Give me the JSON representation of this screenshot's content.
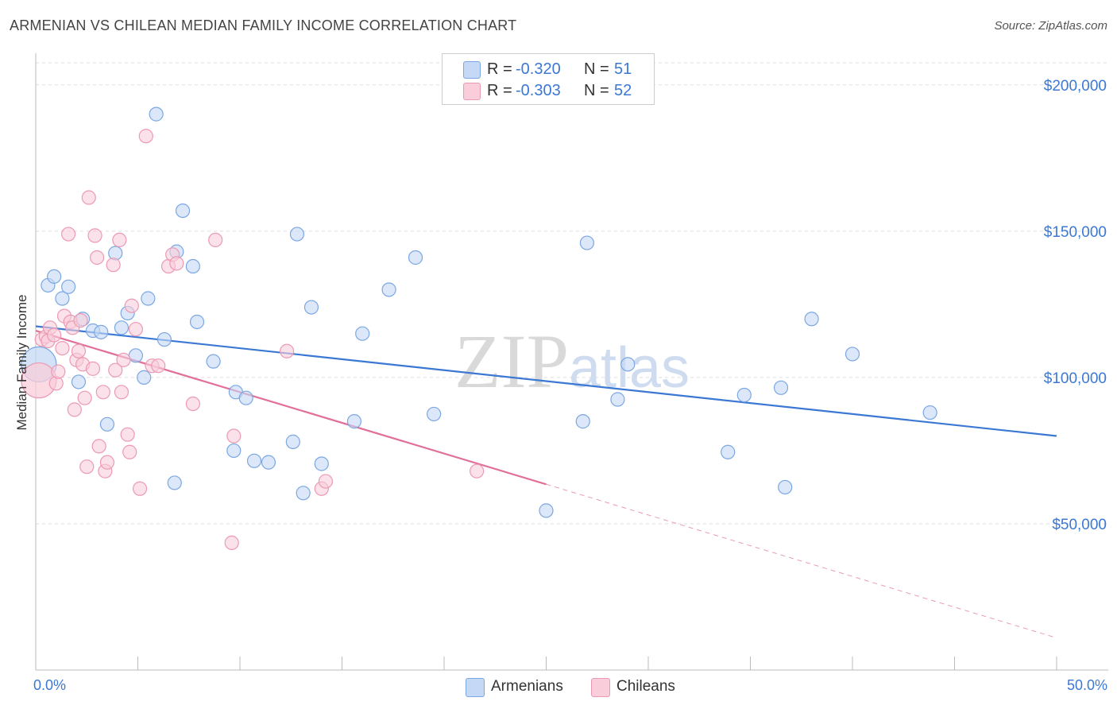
{
  "title": "ARMENIAN VS CHILEAN MEDIAN FAMILY INCOME CORRELATION CHART",
  "source": "Source: ZipAtlas.com",
  "watermark": "ZIPatlas",
  "colors": {
    "armenian_fill": "#c5d8f5",
    "armenian_stroke": "#7ba7e2",
    "armenian_line": "#3b78d4",
    "chilean_fill": "#f9cdda",
    "chilean_stroke": "#ec9ab4",
    "chilean_line": "#e0709a",
    "axis_text": "#3b78d4",
    "grid": "#dddddd"
  },
  "legend": {
    "rows": [
      {
        "r_label": "R =",
        "r_value": "-0.320",
        "n_label": "N =",
        "n_value": "51"
      },
      {
        "r_label": "R =",
        "r_value": "-0.303",
        "n_label": "N =",
        "n_value": "52"
      }
    ]
  },
  "chart_data": {
    "type": "scatter",
    "title": "ARMENIAN VS CHILEAN MEDIAN FAMILY INCOME CORRELATION CHART",
    "xlabel": "",
    "ylabel": "Median Family Income",
    "xlim": [
      0,
      50
    ],
    "ylim": [
      0,
      210000
    ],
    "x_tick_labels": [
      "0.0%",
      "50.0%"
    ],
    "y_ticks": [
      50000,
      100000,
      150000,
      200000
    ],
    "y_tick_labels": [
      "$50,000",
      "$100,000",
      "$150,000",
      "$200,000"
    ],
    "grid": true,
    "series": [
      {
        "name": "Armenians",
        "r": -0.32,
        "n": 51,
        "trend": {
          "x0": 0,
          "y0": 117500,
          "x1": 50,
          "y1": 80000
        },
        "points": [
          [
            0.15,
            104500
          ],
          [
            0.6,
            131500
          ],
          [
            0.9,
            134500
          ],
          [
            1.3,
            127000
          ],
          [
            1.6,
            131000
          ],
          [
            2.1,
            98500
          ],
          [
            2.3,
            120000
          ],
          [
            2.8,
            116000
          ],
          [
            3.2,
            115500
          ],
          [
            3.5,
            84000
          ],
          [
            3.9,
            142500
          ],
          [
            4.2,
            117000
          ],
          [
            4.5,
            122000
          ],
          [
            4.9,
            107500
          ],
          [
            5.3,
            100000
          ],
          [
            5.5,
            127000
          ],
          [
            5.9,
            190000
          ],
          [
            6.3,
            113000
          ],
          [
            6.8,
            64000
          ],
          [
            6.9,
            143000
          ],
          [
            7.2,
            157000
          ],
          [
            7.7,
            138000
          ],
          [
            7.9,
            119000
          ],
          [
            8.7,
            105500
          ],
          [
            9.7,
            75000
          ],
          [
            9.8,
            95000
          ],
          [
            10.3,
            93000
          ],
          [
            10.7,
            71500
          ],
          [
            11.4,
            71000
          ],
          [
            12.6,
            78000
          ],
          [
            12.8,
            149000
          ],
          [
            13.1,
            60500
          ],
          [
            13.5,
            124000
          ],
          [
            14.0,
            70500
          ],
          [
            15.6,
            85000
          ],
          [
            16.0,
            115000
          ],
          [
            17.3,
            130000
          ],
          [
            18.6,
            141000
          ],
          [
            19.5,
            87500
          ],
          [
            25.0,
            54500
          ],
          [
            26.8,
            85000
          ],
          [
            27.0,
            146000
          ],
          [
            28.5,
            92500
          ],
          [
            29.0,
            104500
          ],
          [
            33.9,
            74500
          ],
          [
            34.7,
            94000
          ],
          [
            36.5,
            96500
          ],
          [
            36.7,
            62500
          ],
          [
            38.0,
            120000
          ],
          [
            40.0,
            108000
          ],
          [
            43.8,
            88000
          ]
        ]
      },
      {
        "name": "Chileans",
        "r": -0.303,
        "n": 52,
        "trend": {
          "x0": 0,
          "y0": 116000,
          "x1": 25,
          "y1": 63500
        },
        "trend_ext": {
          "x0": 25,
          "y0": 63500,
          "x1": 50,
          "y1": 11000
        },
        "points": [
          [
            0.15,
            99000
          ],
          [
            0.3,
            113000
          ],
          [
            0.5,
            114000
          ],
          [
            0.6,
            112500
          ],
          [
            0.7,
            117000
          ],
          [
            0.9,
            114500
          ],
          [
            1.0,
            98000
          ],
          [
            1.1,
            102000
          ],
          [
            1.3,
            110000
          ],
          [
            1.4,
            121000
          ],
          [
            1.6,
            149000
          ],
          [
            1.7,
            119000
          ],
          [
            1.8,
            117000
          ],
          [
            1.9,
            89000
          ],
          [
            2.0,
            106000
          ],
          [
            2.1,
            109000
          ],
          [
            2.2,
            119500
          ],
          [
            2.3,
            104500
          ],
          [
            2.4,
            93000
          ],
          [
            2.5,
            69500
          ],
          [
            2.6,
            161500
          ],
          [
            2.8,
            103000
          ],
          [
            2.9,
            148500
          ],
          [
            3.0,
            141000
          ],
          [
            3.1,
            76500
          ],
          [
            3.3,
            95000
          ],
          [
            3.4,
            68000
          ],
          [
            3.5,
            71000
          ],
          [
            3.8,
            138500
          ],
          [
            3.9,
            102500
          ],
          [
            4.1,
            147000
          ],
          [
            4.2,
            95000
          ],
          [
            4.3,
            106000
          ],
          [
            4.5,
            80500
          ],
          [
            4.6,
            74500
          ],
          [
            4.7,
            124500
          ],
          [
            4.9,
            116500
          ],
          [
            5.1,
            62000
          ],
          [
            5.4,
            182500
          ],
          [
            5.7,
            104000
          ],
          [
            6.0,
            104000
          ],
          [
            6.5,
            138000
          ],
          [
            6.7,
            142000
          ],
          [
            6.9,
            139000
          ],
          [
            7.7,
            91000
          ],
          [
            8.8,
            147000
          ],
          [
            9.6,
            43500
          ],
          [
            9.7,
            80000
          ],
          [
            12.3,
            109000
          ],
          [
            14.0,
            62000
          ],
          [
            14.2,
            64500
          ],
          [
            21.6,
            68000
          ]
        ]
      }
    ]
  },
  "bottom_legend": {
    "armenians": "Armenians",
    "chileans": "Chileans"
  }
}
